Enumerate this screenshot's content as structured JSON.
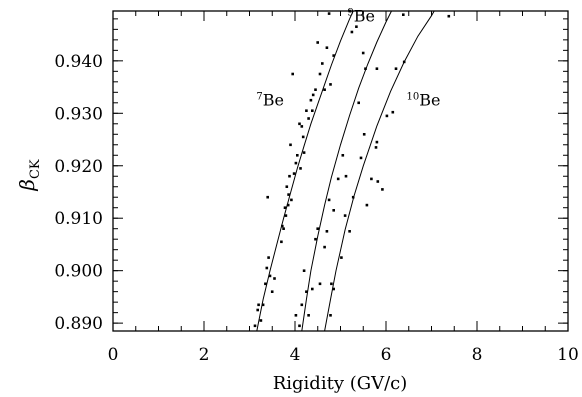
{
  "chart_data": {
    "type": "scatter",
    "xlabel": "Rigidity (GV/c)",
    "ylabel": {
      "main": "β",
      "sub": "CK"
    },
    "xlim": [
      0,
      10
    ],
    "ylim": [
      0.8885,
      0.9495
    ],
    "x_ticks": [
      0,
      2,
      4,
      6,
      8,
      10
    ],
    "x_tick_labels": [
      "0",
      "2",
      "4",
      "6",
      "8",
      "10"
    ],
    "x_minor_step": 0.5,
    "y_ticks": [
      0.89,
      0.9,
      0.91,
      0.92,
      0.93,
      0.94
    ],
    "y_tick_labels": [
      "0.890",
      "0.900",
      "0.910",
      "0.920",
      "0.930",
      "0.940"
    ],
    "y_minor_step": 0.002,
    "grid": false,
    "legend": "none",
    "series": [
      {
        "label": {
          "sup": "7",
          "text": "Be",
          "x": 3.15,
          "y": 0.9315
        },
        "curve": [
          [
            3.16,
            0.8885
          ],
          [
            3.3,
            0.8945
          ],
          [
            3.45,
            0.9
          ],
          [
            3.6,
            0.905
          ],
          [
            3.75,
            0.91
          ],
          [
            3.9,
            0.9148
          ],
          [
            4.05,
            0.9195
          ],
          [
            4.2,
            0.9238
          ],
          [
            4.35,
            0.928
          ],
          [
            4.5,
            0.9318
          ],
          [
            4.65,
            0.9355
          ],
          [
            4.8,
            0.9392
          ],
          [
            5.0,
            0.9438
          ],
          [
            5.2,
            0.948
          ],
          [
            5.28,
            0.9495
          ]
        ],
        "points": [
          [
            3.12,
            0.8895
          ],
          [
            3.18,
            0.8925
          ],
          [
            3.2,
            0.8935
          ],
          [
            3.25,
            0.8905
          ],
          [
            3.3,
            0.8935
          ],
          [
            3.35,
            0.8975
          ],
          [
            3.38,
            0.9005
          ],
          [
            3.42,
            0.9025
          ],
          [
            3.45,
            0.899
          ],
          [
            3.5,
            0.896
          ],
          [
            3.55,
            0.8985
          ],
          [
            3.4,
            0.914
          ],
          [
            3.7,
            0.9055
          ],
          [
            3.72,
            0.9085
          ],
          [
            3.75,
            0.908
          ],
          [
            3.78,
            0.912
          ],
          [
            3.8,
            0.9105
          ],
          [
            3.82,
            0.916
          ],
          [
            3.85,
            0.9125
          ],
          [
            3.86,
            0.9145
          ],
          [
            3.88,
            0.918
          ],
          [
            3.9,
            0.924
          ],
          [
            3.92,
            0.9135
          ],
          [
            3.95,
            0.9375
          ],
          [
            3.98,
            0.9185
          ],
          [
            4.02,
            0.9205
          ],
          [
            4.05,
            0.922
          ],
          [
            4.1,
            0.928
          ],
          [
            4.12,
            0.9195
          ],
          [
            4.15,
            0.9275
          ],
          [
            4.18,
            0.9255
          ],
          [
            4.2,
            0.9225
          ],
          [
            4.25,
            0.9305
          ],
          [
            4.3,
            0.929
          ],
          [
            4.35,
            0.9325
          ],
          [
            4.38,
            0.9305
          ],
          [
            4.4,
            0.9335
          ],
          [
            4.45,
            0.9345
          ],
          [
            4.5,
            0.9435
          ],
          [
            4.55,
            0.9375
          ],
          [
            4.6,
            0.9395
          ],
          [
            4.65,
            0.9345
          ],
          [
            4.7,
            0.9425
          ],
          [
            4.75,
            0.949
          ],
          [
            4.78,
            0.9355
          ],
          [
            4.85,
            0.941
          ]
        ]
      },
      {
        "label": {
          "sup": "9",
          "text": "Be",
          "x": 5.15,
          "y": 0.9475
        },
        "curve": [
          [
            4.15,
            0.8885
          ],
          [
            4.25,
            0.8945
          ],
          [
            4.35,
            0.9
          ],
          [
            4.5,
            0.9066
          ],
          [
            4.65,
            0.9125
          ],
          [
            4.8,
            0.9178
          ],
          [
            5.0,
            0.924
          ],
          [
            5.2,
            0.9296
          ],
          [
            5.4,
            0.9348
          ],
          [
            5.6,
            0.9394
          ],
          [
            5.8,
            0.9436
          ],
          [
            6.0,
            0.9474
          ],
          [
            6.12,
            0.9495
          ]
        ],
        "points": [
          [
            4.02,
            0.8915
          ],
          [
            4.1,
            0.8895
          ],
          [
            4.15,
            0.8935
          ],
          [
            4.2,
            0.9
          ],
          [
            4.25,
            0.896
          ],
          [
            4.3,
            0.8915
          ],
          [
            4.38,
            0.8965
          ],
          [
            4.45,
            0.906
          ],
          [
            4.5,
            0.908
          ],
          [
            4.55,
            0.8975
          ],
          [
            4.65,
            0.9045
          ],
          [
            4.7,
            0.9075
          ],
          [
            4.75,
            0.9135
          ],
          [
            4.8,
            0.8975
          ],
          [
            4.85,
            0.9115
          ],
          [
            4.95,
            0.9175
          ],
          [
            5.05,
            0.922
          ],
          [
            5.12,
            0.918
          ],
          [
            5.2,
            0.9495
          ],
          [
            5.25,
            0.9455
          ],
          [
            5.35,
            0.9465
          ],
          [
            5.4,
            0.932
          ],
          [
            5.5,
            0.9415
          ],
          [
            5.55,
            0.9385
          ],
          [
            5.8,
            0.9385
          ],
          [
            6.38,
            0.9488
          ]
        ]
      },
      {
        "label": {
          "sup": "10",
          "text": "Be",
          "x": 6.45,
          "y": 0.9315
        },
        "curve": [
          [
            4.65,
            0.8885
          ],
          [
            4.78,
            0.8945
          ],
          [
            4.9,
            0.9
          ],
          [
            5.1,
            0.9078
          ],
          [
            5.3,
            0.9143
          ],
          [
            5.5,
            0.92
          ],
          [
            5.8,
            0.9276
          ],
          [
            6.1,
            0.9342
          ],
          [
            6.4,
            0.9398
          ],
          [
            6.7,
            0.9447
          ],
          [
            7.0,
            0.9486
          ],
          [
            7.06,
            0.9495
          ]
        ],
        "points": [
          [
            4.78,
            0.8915
          ],
          [
            4.85,
            0.8965
          ],
          [
            5.02,
            0.9025
          ],
          [
            5.1,
            0.9105
          ],
          [
            5.2,
            0.9075
          ],
          [
            5.28,
            0.914
          ],
          [
            5.45,
            0.9215
          ],
          [
            5.52,
            0.926
          ],
          [
            5.58,
            0.9125
          ],
          [
            5.68,
            0.9175
          ],
          [
            5.78,
            0.9235
          ],
          [
            5.8,
            0.9245
          ],
          [
            5.82,
            0.917
          ],
          [
            5.92,
            0.9155
          ],
          [
            6.02,
            0.9295
          ],
          [
            6.15,
            0.9302
          ],
          [
            6.22,
            0.9385
          ],
          [
            6.4,
            0.9398
          ],
          [
            7.38,
            0.9485
          ]
        ]
      }
    ]
  }
}
